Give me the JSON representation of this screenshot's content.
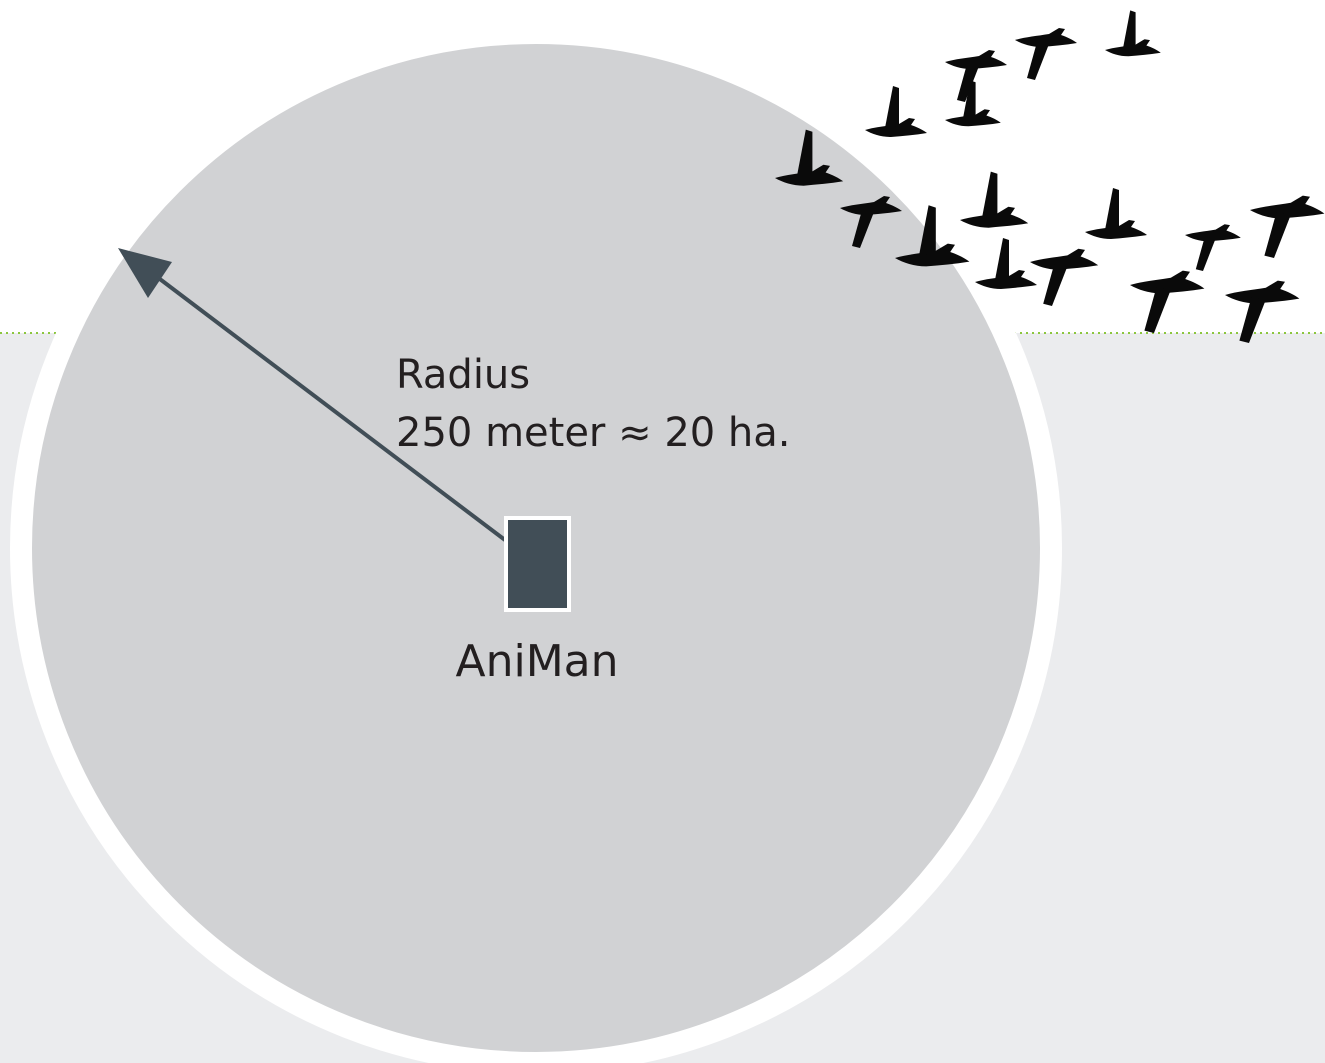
{
  "labels": {
    "radius_title": "Radius",
    "radius_value": "250 meter ≈ 20 ha.",
    "device": "AniMan"
  }
}
